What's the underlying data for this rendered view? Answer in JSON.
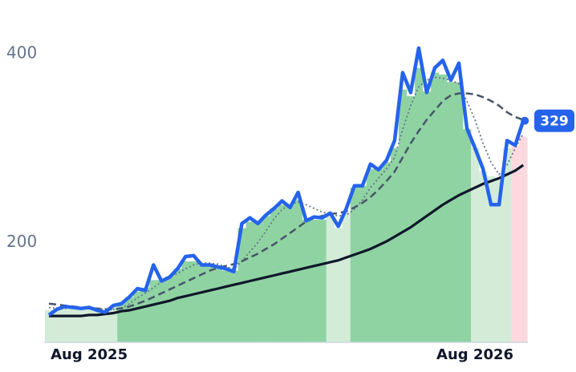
{
  "chart_data": {
    "type": "line",
    "categories": [
      null,
      null,
      null,
      null,
      null,
      "Aug 2025",
      null,
      null,
      null,
      null,
      null,
      null,
      null,
      null,
      null,
      null,
      null,
      null,
      null,
      null,
      null,
      null,
      null,
      null,
      null,
      null,
      null,
      null,
      null,
      null,
      null,
      null,
      null,
      null,
      null,
      null,
      null,
      null,
      null,
      null,
      null,
      null,
      null,
      null,
      null,
      null,
      null,
      null,
      null,
      null,
      null,
      null,
      null,
      "Aug 2026",
      null,
      null,
      null,
      null,
      null,
      null
    ],
    "ylim": [
      94,
      423
    ],
    "yticks": [
      200,
      400
    ],
    "bars": {
      "values": [
        128,
        130,
        131,
        131,
        130,
        129,
        127,
        128,
        132,
        136,
        142,
        148,
        152,
        160,
        160,
        164,
        172,
        180,
        180,
        176,
        174,
        172,
        170,
        170,
        215,
        222,
        222,
        228,
        236,
        240,
        240,
        245,
        224,
        224,
        224,
        228,
        215,
        232,
        258,
        260,
        278,
        278,
        285,
        300,
        362,
        355,
        385,
        360,
        380,
        378,
        370,
        370,
        320,
        300,
        275,
        270,
        268,
        300,
        302,
        312
      ],
      "colors": [
        "#d3ecd8",
        "#d3ecd8",
        "#d3ecd8",
        "#d3ecd8",
        "#d3ecd8",
        "#d3ecd8",
        "#d3ecd8",
        "#d3ecd8",
        "#d3ecd8",
        "#8fd3a2",
        "#8fd3a2",
        "#8fd3a2",
        "#8fd3a2",
        "#8fd3a2",
        "#8fd3a2",
        "#8fd3a2",
        "#8fd3a2",
        "#8fd3a2",
        "#8fd3a2",
        "#8fd3a2",
        "#8fd3a2",
        "#8fd3a2",
        "#8fd3a2",
        "#8fd3a2",
        "#8fd3a2",
        "#8fd3a2",
        "#8fd3a2",
        "#8fd3a2",
        "#8fd3a2",
        "#8fd3a2",
        "#8fd3a2",
        "#8fd3a2",
        "#8fd3a2",
        "#8fd3a2",
        "#8fd3a2",
        "#d3ecd8",
        "#d3ecd8",
        "#d3ecd8",
        "#8fd3a2",
        "#8fd3a2",
        "#8fd3a2",
        "#8fd3a2",
        "#8fd3a2",
        "#8fd3a2",
        "#8fd3a2",
        "#8fd3a2",
        "#8fd3a2",
        "#8fd3a2",
        "#8fd3a2",
        "#8fd3a2",
        "#8fd3a2",
        "#8fd3a2",
        "#8fd3a2",
        "#d3ecd8",
        "#d3ecd8",
        "#d3ecd8",
        "#d3ecd8",
        "#d3ecd8",
        "#fcd9de",
        "#fcd9de"
      ]
    },
    "series": [
      {
        "color": "#64748b",
        "style": "dotted",
        "values": [
          131,
          130,
          130,
          131,
          131,
          131,
          130,
          129,
          129,
          130,
          135,
          141,
          146,
          152,
          158,
          163,
          167,
          172,
          176,
          178,
          178,
          177,
          174,
          172,
          180,
          190,
          200,
          212,
          225,
          235,
          240,
          243,
          240,
          236,
          232,
          230,
          228,
          229,
          235,
          245,
          258,
          268,
          278,
          290,
          320,
          345,
          365,
          372,
          375,
          374,
          372,
          368,
          350,
          330,
          305,
          285,
          272,
          282,
          300,
          315
        ]
      },
      {
        "color": "#475569",
        "style": "dashed",
        "values": [
          135,
          134,
          133,
          132,
          131,
          130,
          130,
          129,
          129,
          130,
          132,
          135,
          138,
          142,
          146,
          150,
          154,
          158,
          162,
          166,
          170,
          173,
          175,
          177,
          180,
          184,
          188,
          193,
          198,
          204,
          210,
          216,
          222,
          226,
          228,
          230,
          231,
          233,
          237,
          242,
          248,
          256,
          265,
          275,
          290,
          305,
          318,
          330,
          340,
          350,
          356,
          358,
          358,
          357,
          354,
          350,
          345,
          338,
          333,
          330
        ]
      },
      {
        "color": "#0f172a",
        "style": "solid",
        "values": [
          122,
          122,
          122,
          122,
          122,
          123,
          123,
          124,
          125,
          127,
          128,
          130,
          132,
          134,
          136,
          138,
          141,
          143,
          145,
          147,
          149,
          151,
          153,
          155,
          157,
          159,
          161,
          163,
          165,
          167,
          169,
          171,
          173,
          175,
          177,
          179,
          181,
          184,
          187,
          190,
          193,
          197,
          201,
          206,
          211,
          216,
          222,
          228,
          234,
          240,
          245,
          250,
          254,
          258,
          262,
          265,
          268,
          272,
          276,
          282
        ]
      },
      {
        "color": "#2563eb",
        "style": "price",
        "values": [
          123,
          129,
          132,
          131,
          130,
          131,
          128,
          126,
          133,
          135,
          142,
          151,
          149,
          176,
          159,
          163,
          172,
          185,
          186,
          176,
          176,
          174,
          172,
          169,
          220,
          226,
          220,
          229,
          236,
          244,
          237,
          253,
          223,
          227,
          226,
          231,
          217,
          236,
          260,
          260,
          283,
          277,
          287,
          308,
          380,
          359,
          406,
          359,
          385,
          393,
          372,
          390,
          321,
          300,
          278,
          240,
          240,
          308,
          303,
          329
        ]
      }
    ]
  }
}
